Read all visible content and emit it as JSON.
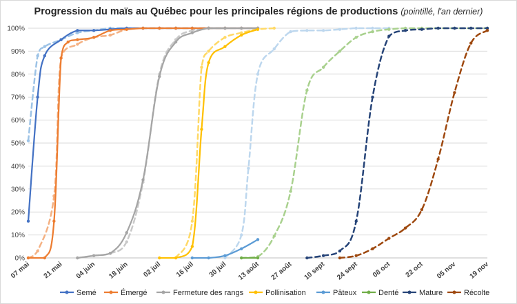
{
  "chart_data": {
    "type": "line",
    "title": "Progression du maïs au Québec pour les principales régions de productions",
    "subtitle": "(pointillé, l'an dernier)",
    "xlabel": "",
    "ylabel": "",
    "grid": true,
    "legend_position": "bottom",
    "x_ticks": [
      "07 mai",
      "21 mai",
      "04 juin",
      "18 juin",
      "02 juil",
      "16 juil",
      "30 juil",
      "13 août",
      "27 août",
      "10 sept",
      "24 sept",
      "08 oct",
      "22 oct",
      "05 nov",
      "19 nov"
    ],
    "y_ticks": [
      "0%",
      "10%",
      "20%",
      "30%",
      "40%",
      "50%",
      "60%",
      "70%",
      "80%",
      "90%",
      "100%"
    ],
    "ylim": [
      0,
      100
    ],
    "series": [
      {
        "name": "Semé",
        "color": "#4472C4",
        "style": "solid",
        "x": [
          "05-07",
          "05-11",
          "05-14",
          "05-21",
          "05-28",
          "06-04",
          "06-11",
          "06-18",
          "06-25",
          "07-02",
          "07-09",
          "07-16",
          "07-23",
          "07-30",
          "08-06",
          "08-13"
        ],
        "y": [
          16,
          70,
          88,
          95,
          99,
          99,
          99.5,
          100,
          100,
          100,
          100,
          100,
          100,
          100,
          100,
          100
        ]
      },
      {
        "name": "Semé (l'an dernier)",
        "color": "#9DC3E6",
        "style": "dashed",
        "x": [
          "05-07",
          "05-11",
          "05-14",
          "05-21",
          "05-28",
          "06-04",
          "06-11",
          "06-18",
          "06-25",
          "07-02",
          "07-09",
          "07-16",
          "07-23",
          "07-30"
        ],
        "y": [
          51,
          88,
          92,
          95,
          98,
          99,
          100,
          100,
          100,
          100,
          100,
          100,
          100,
          100
        ]
      },
      {
        "name": "Émergé",
        "color": "#ED7D31",
        "style": "solid",
        "x": [
          "05-07",
          "05-14",
          "05-18",
          "05-21",
          "05-24",
          "05-28",
          "06-04",
          "06-11",
          "06-18",
          "06-25",
          "07-02",
          "07-09",
          "07-16",
          "07-23",
          "07-30",
          "08-06",
          "08-13"
        ],
        "y": [
          0,
          0,
          16,
          87,
          94,
          95,
          96,
          99,
          99.5,
          100,
          100,
          100,
          100,
          100,
          100,
          100,
          100
        ]
      },
      {
        "name": "Émergé (l'an dernier)",
        "color": "#F4B183",
        "style": "dashed",
        "x": [
          "05-07",
          "05-11",
          "05-18",
          "05-21",
          "05-28",
          "06-04",
          "06-11",
          "06-18",
          "06-25",
          "07-02",
          "07-09",
          "07-16",
          "07-23",
          "07-30"
        ],
        "y": [
          0,
          3,
          27,
          87,
          93,
          96,
          97,
          99.5,
          100,
          100,
          100,
          100,
          100,
          100
        ]
      },
      {
        "name": "Fermeture des rangs",
        "color": "#A5A5A5",
        "style": "solid",
        "x": [
          "05-28",
          "06-04",
          "06-11",
          "06-18",
          "06-25",
          "07-02",
          "07-09",
          "07-16",
          "07-23",
          "07-30",
          "08-06",
          "08-13"
        ],
        "y": [
          0,
          1,
          2,
          11,
          34,
          79,
          94,
          98,
          100,
          100,
          100,
          100
        ]
      },
      {
        "name": "Fermeture des rangs (l'an dernier)",
        "color": "#C9C9C9",
        "style": "dashed",
        "x": [
          "05-28",
          "06-04",
          "06-11",
          "06-18",
          "06-25",
          "07-02",
          "07-09",
          "07-16",
          "07-23",
          "07-30",
          "08-06",
          "08-13"
        ],
        "y": [
          0,
          1,
          2,
          7,
          33,
          80,
          95,
          99,
          100,
          100,
          100,
          100
        ]
      },
      {
        "name": "Pollinisation",
        "color": "#FFC000",
        "style": "solid",
        "x": [
          "07-02",
          "07-09",
          "07-16",
          "07-20",
          "07-23",
          "07-30",
          "08-06",
          "08-13"
        ],
        "y": [
          0,
          0,
          5,
          56,
          85,
          92,
          97,
          99.5
        ]
      },
      {
        "name": "Pollinisation (l'an dernier)",
        "color": "#FFD966",
        "style": "dashed",
        "x": [
          "07-09",
          "07-16",
          "07-20",
          "07-23",
          "07-30",
          "08-06",
          "08-13",
          "08-20"
        ],
        "y": [
          0,
          16,
          83,
          90,
          96,
          98,
          99.5,
          100
        ]
      },
      {
        "name": "Pâteux",
        "color": "#5B9BD5",
        "style": "solid",
        "x": [
          "07-16",
          "07-23",
          "07-30",
          "08-06",
          "08-13"
        ],
        "y": [
          0,
          0,
          1,
          4,
          8
        ]
      },
      {
        "name": "Pâteux (l'an dernier)",
        "color": "#BDD7EE",
        "style": "dashed",
        "x": [
          "07-30",
          "08-06",
          "08-09",
          "08-13",
          "08-20",
          "08-27",
          "09-03",
          "09-10",
          "09-17",
          "09-24",
          "10-01",
          "10-08"
        ],
        "y": [
          0,
          10,
          39,
          80,
          91,
          98.5,
          99,
          99,
          99.5,
          100,
          100,
          100
        ]
      },
      {
        "name": "Denté",
        "color": "#70AD47",
        "style": "solid",
        "x": [
          "08-06",
          "08-13"
        ],
        "y": [
          0,
          0
        ]
      },
      {
        "name": "Denté (l'an dernier)",
        "color": "#A9D18E",
        "style": "dashed",
        "x": [
          "08-06",
          "08-13",
          "08-20",
          "08-27",
          "09-03",
          "09-10",
          "09-17",
          "09-24",
          "10-01",
          "10-08",
          "10-15",
          "10-22",
          "10-29",
          "11-05",
          "11-12",
          "11-19"
        ],
        "y": [
          0,
          0.5,
          9.5,
          29,
          73,
          83,
          90,
          96,
          98.5,
          99.5,
          100,
          100,
          100,
          100,
          100,
          100
        ]
      },
      {
        "name": "Mature (l'an dernier)",
        "color": "#264478",
        "style": "dashed",
        "x": [
          "09-03",
          "09-10",
          "09-17",
          "09-24",
          "10-01",
          "10-08",
          "10-15",
          "10-22",
          "10-29",
          "11-05",
          "11-12",
          "11-19"
        ],
        "y": [
          0,
          1,
          3,
          16,
          70,
          96.5,
          99,
          99.5,
          100,
          100,
          100,
          100
        ]
      },
      {
        "name": "Récolte (l'an dernier)",
        "color": "#9E480E",
        "style": "dashed",
        "x": [
          "09-17",
          "09-24",
          "10-01",
          "10-08",
          "10-15",
          "10-22",
          "10-29",
          "11-05",
          "11-12",
          "11-19"
        ],
        "y": [
          0,
          1,
          4,
          8.5,
          13,
          21,
          43,
          72,
          93.5,
          99
        ]
      }
    ],
    "legend": [
      {
        "name": "Semé",
        "color": "#4472C4"
      },
      {
        "name": "Émergé",
        "color": "#ED7D31"
      },
      {
        "name": "Fermeture des rangs",
        "color": "#A5A5A5"
      },
      {
        "name": "Pollinisation",
        "color": "#FFC000"
      },
      {
        "name": "Pâteux",
        "color": "#5B9BD5"
      },
      {
        "name": "Denté",
        "color": "#70AD47"
      },
      {
        "name": "Mature",
        "color": "#264478"
      },
      {
        "name": "Récolte",
        "color": "#9E480E"
      }
    ]
  }
}
